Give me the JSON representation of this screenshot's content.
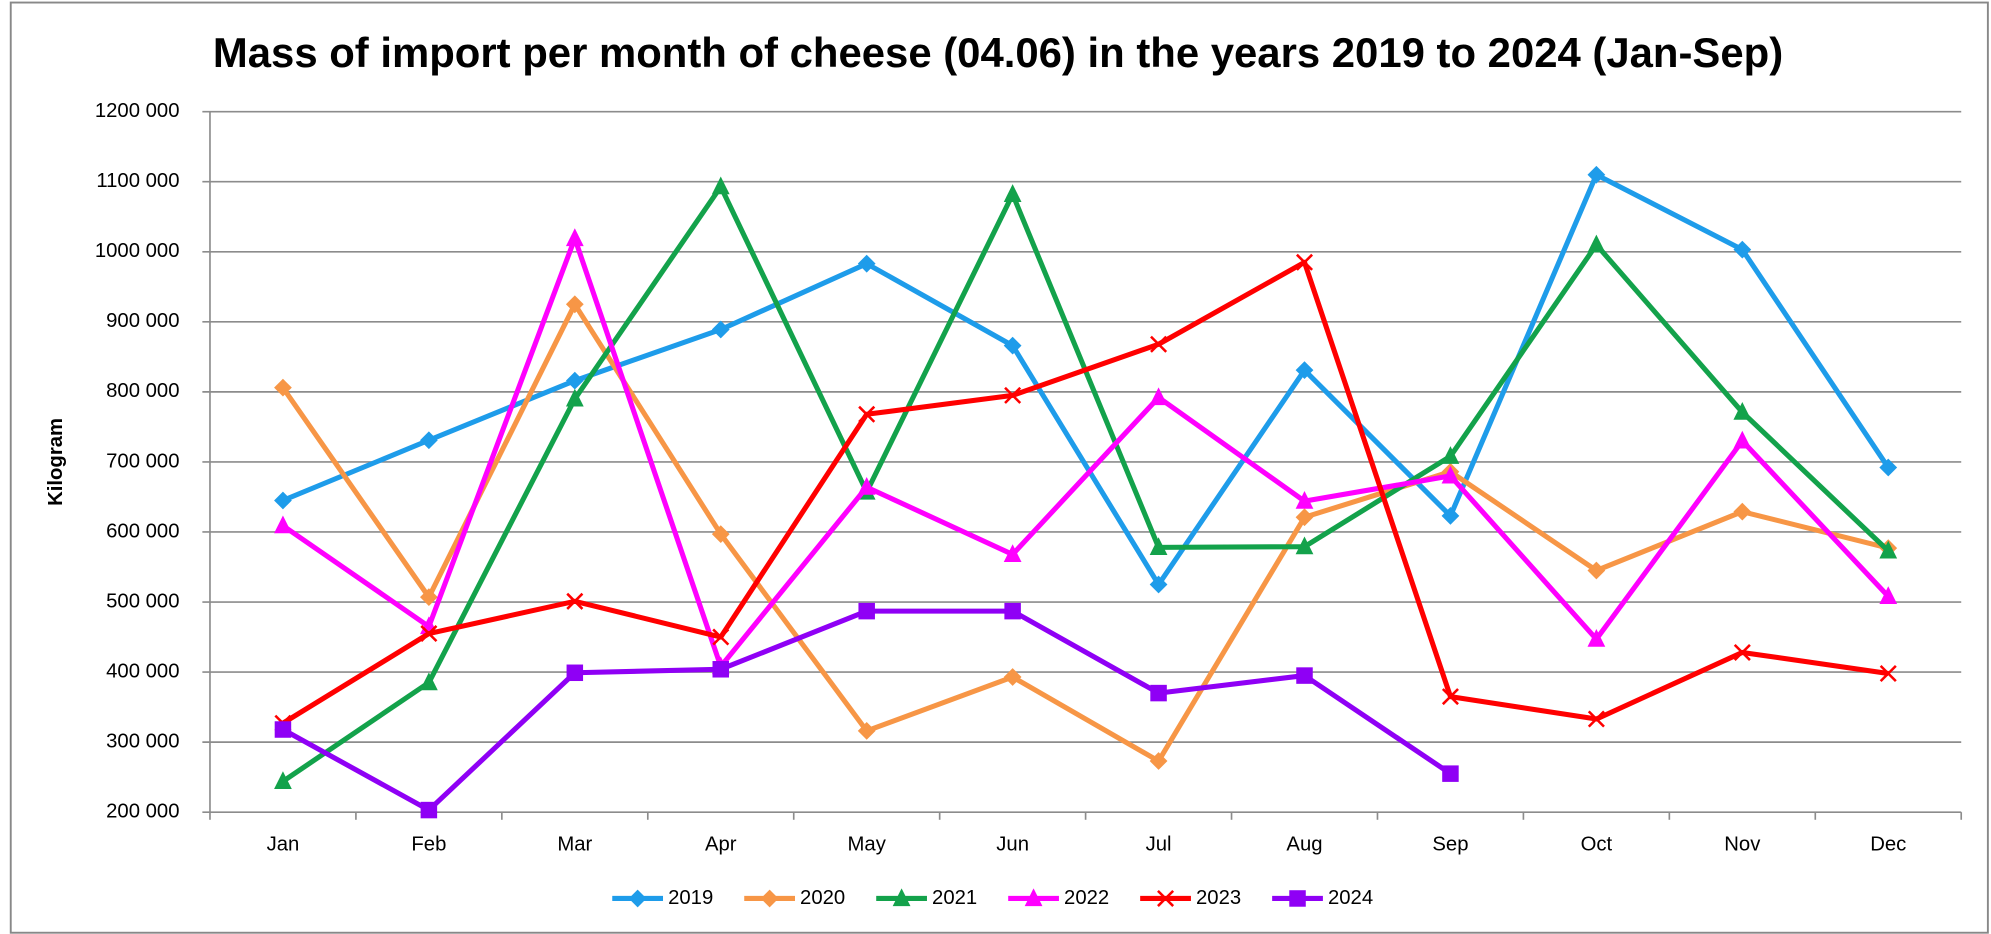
{
  "chart_data": {
    "type": "line",
    "title": "Mass of import per month of cheese (04.06) in the years 2019 to 2024 (Jan-Sep)",
    "y_label": "Kilogram",
    "categories": [
      "Jan",
      "Feb",
      "Mar",
      "Apr",
      "May",
      "Jun",
      "Jul",
      "Aug",
      "Sep",
      "Oct",
      "Nov",
      "Dec"
    ],
    "series": [
      {
        "name": "2019",
        "color": "#1e9cea",
        "marker": "diamond",
        "values": [
          645000,
          731000,
          816000,
          889000,
          983000,
          866000,
          525000,
          831000,
          623000,
          1110000,
          1003000,
          692000
        ]
      },
      {
        "name": "2020",
        "color": "#f79646",
        "marker": "diamond",
        "values": [
          806000,
          507000,
          925000,
          597000,
          316000,
          393000,
          273000,
          621000,
          686000,
          545000,
          629000,
          577000
        ]
      },
      {
        "name": "2021",
        "color": "#13a24b",
        "marker": "triangle",
        "values": [
          244000,
          385000,
          790000,
          1093000,
          657000,
          1082000,
          578000,
          579000,
          708000,
          1010000,
          771000,
          573000
        ]
      },
      {
        "name": "2022",
        "color": "#ff00ff",
        "marker": "triangle",
        "values": [
          609000,
          465000,
          1019000,
          408000,
          664000,
          568000,
          792000,
          644000,
          680000,
          447000,
          730000,
          508000
        ]
      },
      {
        "name": "2023",
        "color": "#ff0000",
        "marker": "x",
        "values": [
          327000,
          455000,
          501000,
          450000,
          768000,
          795000,
          868000,
          985000,
          365000,
          333000,
          428000,
          398000
        ]
      },
      {
        "name": "2024",
        "color": "#8f00f5",
        "marker": "square",
        "values": [
          318000,
          203000,
          399000,
          404000,
          487000,
          487000,
          370000,
          395000,
          255000,
          null,
          null,
          null
        ]
      }
    ],
    "ylim": [
      200000,
      1200000
    ],
    "yticks": [
      {
        "value": 200000,
        "label": "200 000"
      },
      {
        "value": 300000,
        "label": "300 000"
      },
      {
        "value": 400000,
        "label": "400 000"
      },
      {
        "value": 500000,
        "label": "500 000"
      },
      {
        "value": 600000,
        "label": "600 000"
      },
      {
        "value": 700000,
        "label": "700 000"
      },
      {
        "value": 800000,
        "label": "800 000"
      },
      {
        "value": 900000,
        "label": "900 000"
      },
      {
        "value": 1000000,
        "label": "1000 000"
      },
      {
        "value": 1100000,
        "label": "1100 000"
      },
      {
        "value": 1200000,
        "label": "1200 000"
      }
    ],
    "grid": true,
    "legend": "bottom"
  }
}
